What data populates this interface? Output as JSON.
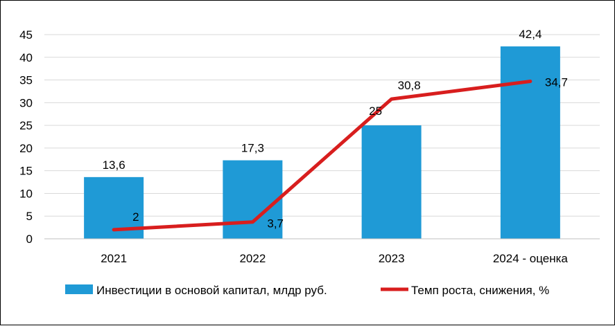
{
  "chart_data": {
    "type": "bar",
    "categories": [
      "2021",
      "2022",
      "2023",
      "2024 - оценка"
    ],
    "ylim": [
      0,
      45
    ],
    "yticks": [
      0,
      5,
      10,
      15,
      20,
      25,
      30,
      35,
      40,
      45
    ],
    "grid": true,
    "legend_position": "bottom",
    "series": [
      {
        "name": "Инвестиции в основой капитал, млдр руб.",
        "type": "bar",
        "color": "#1f9ad6",
        "values": [
          13.6,
          17.3,
          25,
          42.4
        ],
        "labels": [
          "13,6",
          "17,3",
          "25",
          "42,4"
        ]
      },
      {
        "name": "Темп роста, снижения, %",
        "type": "line",
        "color": "#d81e1e",
        "values": [
          2,
          3.7,
          30.8,
          34.7
        ],
        "labels": [
          "2",
          "3,7",
          "30,8",
          "34,7"
        ]
      }
    ]
  }
}
